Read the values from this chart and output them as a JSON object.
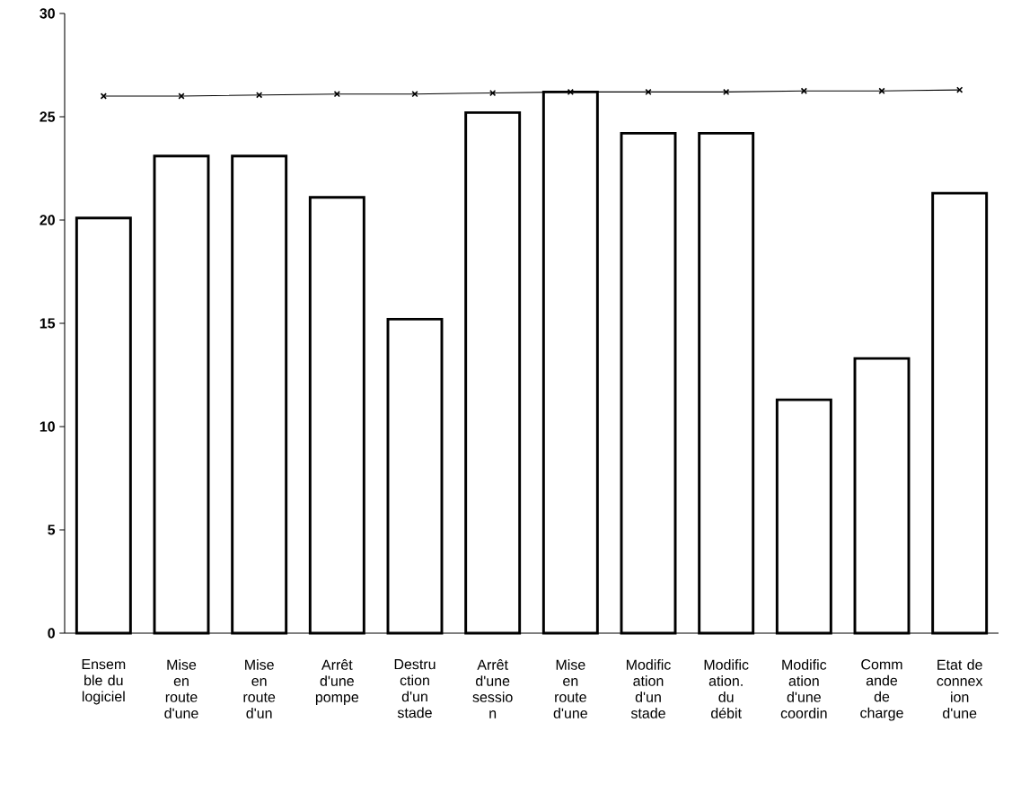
{
  "chart_data": {
    "type": "bar",
    "categories": [
      "Ensem ble du logiciel",
      "Mise en route d'une",
      "Mise en route d'un",
      "Arrêt d'une pompe",
      "Destru ction d'un stade",
      "Arrêt d'une sessio n",
      "Mise en route d'une",
      "Modific ation d'un stade",
      "Modific ation. du débit",
      "Modific ation d'une coordin",
      "Comm ande de charge",
      "Etat de connex ion d'une"
    ],
    "series": [
      {
        "color": "#000000",
        "values": [
          20.1,
          23.1,
          23.1,
          21.1,
          15.2,
          25.2,
          26.2,
          24.2,
          24.2,
          11.3,
          13.3,
          21.3
        ]
      },
      {
        "type": "line",
        "color": "#000000",
        "marker": "cross",
        "values": [
          26.0,
          26.0,
          26.05,
          26.1,
          26.1,
          26.15,
          26.2,
          26.2,
          26.2,
          26.25,
          26.25,
          26.3
        ]
      }
    ],
    "ylim": [
      0,
      30
    ],
    "yticks": [
      0,
      5,
      10,
      15,
      20,
      25,
      30
    ],
    "grid": false
  }
}
